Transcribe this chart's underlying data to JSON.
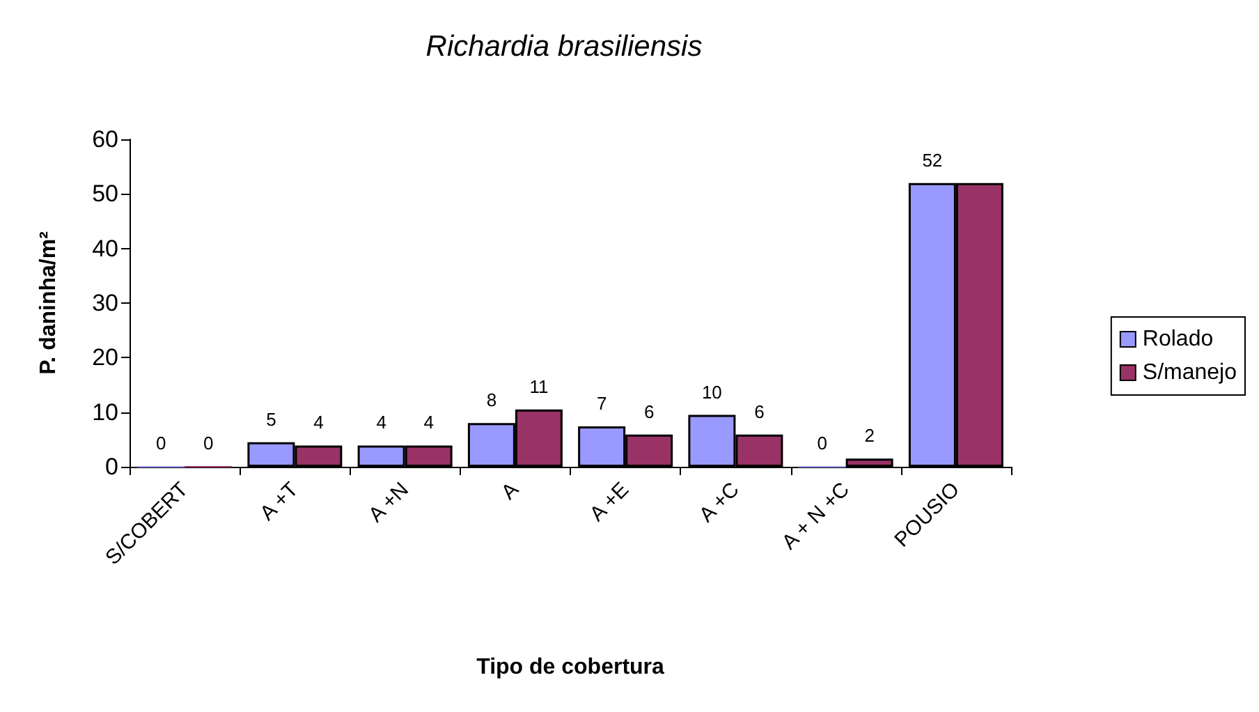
{
  "chart_data": {
    "type": "bar",
    "title": "Richardia brasiliensis",
    "xlabel": "Tipo de cobertura",
    "ylabel": "P. daninha/m²",
    "categories": [
      "S/COBERT",
      "A +T",
      "A +N",
      "A",
      "A +E",
      "A +C",
      "A + N +C",
      "POUSIO"
    ],
    "series": [
      {
        "name": "Rolado",
        "color": "#9999ff",
        "values": [
          0,
          4.5,
          3.9,
          8.0,
          7.4,
          9.5,
          0,
          52
        ],
        "value_labels": [
          "0",
          "5",
          "4",
          "8",
          "7",
          "10",
          "0",
          "52"
        ]
      },
      {
        "name": "S/manejo",
        "color": "#993366",
        "values": [
          0,
          3.9,
          3.9,
          10.5,
          5.9,
          5.9,
          1.5,
          52
        ],
        "value_labels": [
          "0",
          "4",
          "4",
          "11",
          "6",
          "6",
          "2",
          null
        ]
      }
    ],
    "ylim": [
      0,
      60
    ],
    "yticks": [
      0,
      10,
      20,
      30,
      40,
      50,
      60
    ],
    "grid": false,
    "legend": "right"
  }
}
